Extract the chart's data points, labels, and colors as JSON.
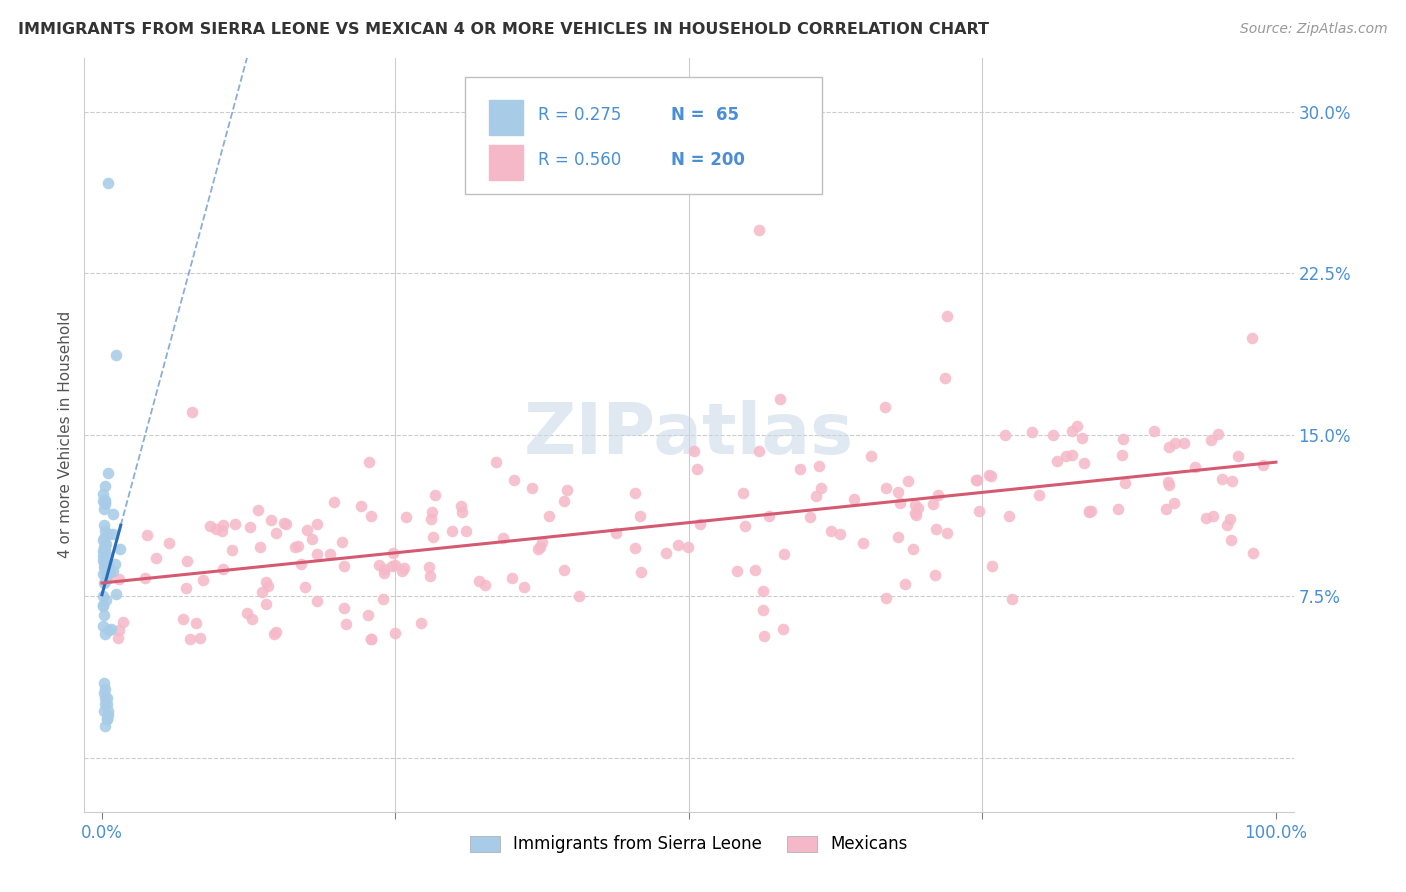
{
  "title": "IMMIGRANTS FROM SIERRA LEONE VS MEXICAN 4 OR MORE VEHICLES IN HOUSEHOLD CORRELATION CHART",
  "source": "Source: ZipAtlas.com",
  "ylabel": "4 or more Vehicles in Household",
  "legend_blue_label": "Immigrants from Sierra Leone",
  "legend_pink_label": "Mexicans",
  "legend_R_blue": "R = 0.275",
  "legend_N_blue": "N =  65",
  "legend_R_pink": "R = 0.560",
  "legend_N_pink": "N = 200",
  "blue_color": "#a8cce8",
  "pink_color": "#f5b8c8",
  "blue_line_color": "#2b6cb8",
  "pink_line_color": "#d45a72",
  "watermark": "ZIPatlas",
  "ytick_vals": [
    0.0,
    0.075,
    0.15,
    0.225,
    0.3
  ],
  "ytick_labels": [
    "",
    "7.5%",
    "15.0%",
    "22.5%",
    "30.0%"
  ],
  "xlim": [
    -0.015,
    1.015
  ],
  "ylim": [
    -0.025,
    0.325
  ]
}
